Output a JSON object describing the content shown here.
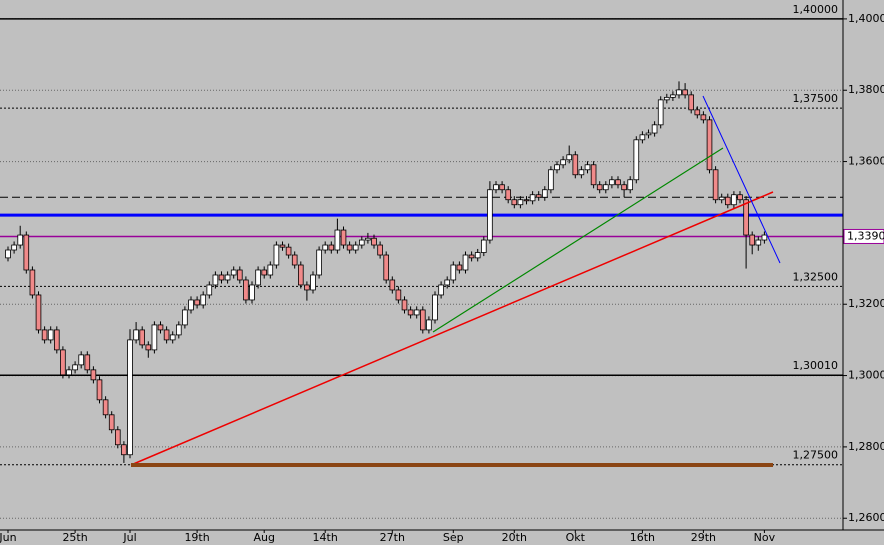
{
  "chart_data": {
    "type": "candlestick",
    "categories": [
      "Jun",
      null,
      null,
      null,
      null,
      null,
      null,
      null,
      null,
      null,
      null,
      "25th",
      null,
      null,
      null,
      null,
      null,
      null,
      null,
      null,
      "Jul",
      null,
      null,
      null,
      null,
      null,
      null,
      null,
      null,
      null,
      null,
      "19th",
      null,
      null,
      null,
      null,
      null,
      null,
      null,
      null,
      null,
      null,
      "Aug",
      null,
      null,
      null,
      null,
      null,
      null,
      null,
      null,
      null,
      "14th",
      null,
      null,
      null,
      null,
      null,
      null,
      null,
      null,
      null,
      null,
      "27th",
      null,
      null,
      null,
      null,
      null,
      null,
      null,
      null,
      null,
      "Sep",
      null,
      null,
      null,
      null,
      null,
      null,
      null,
      null,
      null,
      "20th",
      null,
      null,
      null,
      null,
      null,
      null,
      null,
      null,
      null,
      "Okt",
      null,
      null,
      null,
      null,
      null,
      null,
      null,
      null,
      null,
      null,
      "16th",
      null,
      null,
      null,
      null,
      null,
      null,
      null,
      null,
      null,
      "29th",
      null,
      null,
      null,
      null,
      null,
      null,
      null,
      null,
      null,
      "Nov"
    ],
    "open": [
      1.333,
      1.3352,
      1.3366,
      1.3394,
      1.3296,
      1.3226,
      1.3128,
      1.31,
      1.3128,
      1.3072,
      1.3002,
      1.3016,
      1.303,
      1.3058,
      1.3016,
      1.2988,
      1.2932,
      1.289,
      1.2848,
      1.2806,
      1.2778,
      1.31,
      1.3128,
      1.3086,
      1.3072,
      1.3142,
      1.3128,
      1.31,
      1.3114,
      1.3142,
      1.3184,
      1.3212,
      1.3198,
      1.3226,
      1.3254,
      1.3282,
      1.3268,
      1.3282,
      1.3296,
      1.3268,
      1.3212,
      1.3254,
      1.3296,
      1.3282,
      1.331,
      1.3366,
      1.336,
      1.3338,
      1.331,
      1.3254,
      1.324,
      1.3282,
      1.3352,
      1.3366,
      1.3352,
      1.3408,
      1.3366,
      1.3352,
      1.3366,
      1.338,
      1.3385,
      1.3366,
      1.3338,
      1.3268,
      1.324,
      1.3212,
      1.3184,
      1.317,
      1.3184,
      1.3128,
      1.3156,
      1.3226,
      1.3254,
      1.3268,
      1.331,
      1.3296,
      1.3338,
      1.333,
      1.3345,
      1.338,
      1.3521,
      1.3535,
      1.3521,
      1.3493,
      1.3479,
      1.3493,
      1.349,
      1.3507,
      1.35,
      1.3521,
      1.3577,
      1.3591,
      1.3605,
      1.3619,
      1.3563,
      1.3577,
      1.3591,
      1.3535,
      1.3521,
      1.3535,
      1.3549,
      1.3535,
      1.3521,
      1.3549,
      1.3661,
      1.3675,
      1.368,
      1.3703,
      1.3773,
      1.378,
      1.3787,
      1.3801,
      1.3787,
      1.3745,
      1.3731,
      1.3717,
      1.3577,
      1.3493,
      1.35,
      1.3479,
      1.3507,
      1.3493,
      1.3394,
      1.3366,
      1.338
    ],
    "high": [
      1.3362,
      1.3376,
      1.342,
      1.3404,
      1.3306,
      1.3236,
      1.3138,
      1.3138,
      1.3138,
      1.3082,
      1.3026,
      1.304,
      1.3068,
      1.3068,
      1.3026,
      1.2998,
      1.2942,
      1.29,
      1.2858,
      1.2816,
      1.313,
      1.315,
      1.3138,
      1.3096,
      1.3152,
      1.3152,
      1.3138,
      1.3124,
      1.3152,
      1.3194,
      1.3222,
      1.3222,
      1.3236,
      1.3264,
      1.3292,
      1.3292,
      1.3292,
      1.3306,
      1.3306,
      1.3278,
      1.3264,
      1.3306,
      1.3306,
      1.332,
      1.3376,
      1.3376,
      1.337,
      1.3348,
      1.332,
      1.3264,
      1.3292,
      1.3362,
      1.3376,
      1.3376,
      1.344,
      1.3418,
      1.3376,
      1.3376,
      1.339,
      1.34,
      1.3395,
      1.3376,
      1.3348,
      1.3278,
      1.325,
      1.3222,
      1.3194,
      1.3194,
      1.3194,
      1.3166,
      1.3236,
      1.3264,
      1.3278,
      1.332,
      1.332,
      1.3348,
      1.3348,
      1.3355,
      1.339,
      1.3545,
      1.3545,
      1.3545,
      1.3531,
      1.3503,
      1.3503,
      1.3503,
      1.3517,
      1.3517,
      1.3531,
      1.3587,
      1.3601,
      1.3615,
      1.3645,
      1.3629,
      1.3587,
      1.3601,
      1.3601,
      1.3545,
      1.3545,
      1.3559,
      1.3559,
      1.3545,
      1.3559,
      1.3671,
      1.3685,
      1.369,
      1.3713,
      1.3783,
      1.379,
      1.3797,
      1.3825,
      1.382,
      1.3797,
      1.3755,
      1.3741,
      1.3727,
      1.3587,
      1.351,
      1.351,
      1.3517,
      1.3517,
      1.3503,
      1.3404,
      1.339,
      1.3404
    ],
    "low": [
      1.332,
      1.3342,
      1.3356,
      1.3286,
      1.3216,
      1.3118,
      1.309,
      1.309,
      1.3062,
      1.2992,
      1.2992,
      1.3006,
      1.302,
      1.3006,
      1.2978,
      1.2922,
      1.288,
      1.2838,
      1.2796,
      1.2755,
      1.2768,
      1.309,
      1.3076,
      1.305,
      1.3062,
      1.3118,
      1.309,
      1.309,
      1.3104,
      1.3132,
      1.3174,
      1.3188,
      1.3188,
      1.3216,
      1.3244,
      1.3258,
      1.3258,
      1.3272,
      1.3258,
      1.3202,
      1.3202,
      1.3244,
      1.3272,
      1.3272,
      1.33,
      1.335,
      1.3328,
      1.33,
      1.3244,
      1.321,
      1.323,
      1.3272,
      1.3342,
      1.3342,
      1.3342,
      1.3356,
      1.3342,
      1.3342,
      1.3356,
      1.337,
      1.3356,
      1.3328,
      1.3258,
      1.323,
      1.3202,
      1.3174,
      1.316,
      1.316,
      1.3118,
      1.3118,
      1.3146,
      1.3216,
      1.3244,
      1.3258,
      1.3286,
      1.3286,
      1.332,
      1.332,
      1.3335,
      1.337,
      1.3511,
      1.3511,
      1.3483,
      1.3469,
      1.3469,
      1.348,
      1.348,
      1.349,
      1.349,
      1.3511,
      1.3567,
      1.3581,
      1.3595,
      1.3553,
      1.3553,
      1.3567,
      1.3525,
      1.3511,
      1.3511,
      1.3525,
      1.3525,
      1.35,
      1.3511,
      1.3539,
      1.3651,
      1.3665,
      1.367,
      1.3693,
      1.3763,
      1.377,
      1.3777,
      1.3777,
      1.3735,
      1.3721,
      1.3707,
      1.3567,
      1.3483,
      1.3483,
      1.3469,
      1.3469,
      1.3483,
      1.33,
      1.334,
      1.335,
      1.337
    ],
    "close": [
      1.3352,
      1.3366,
      1.3394,
      1.3296,
      1.3226,
      1.3128,
      1.31,
      1.3128,
      1.3072,
      1.3002,
      1.3016,
      1.303,
      1.3058,
      1.3016,
      1.2988,
      1.2932,
      1.289,
      1.2848,
      1.2806,
      1.2778,
      1.31,
      1.3128,
      1.3086,
      1.3072,
      1.3142,
      1.3128,
      1.31,
      1.3114,
      1.3142,
      1.3184,
      1.3212,
      1.3198,
      1.3226,
      1.3254,
      1.3282,
      1.3268,
      1.3282,
      1.3296,
      1.3268,
      1.3212,
      1.3254,
      1.3296,
      1.3282,
      1.331,
      1.3366,
      1.336,
      1.3338,
      1.331,
      1.3254,
      1.324,
      1.3282,
      1.3352,
      1.3366,
      1.3352,
      1.3408,
      1.3366,
      1.3352,
      1.3366,
      1.338,
      1.3385,
      1.3366,
      1.3338,
      1.3268,
      1.324,
      1.3212,
      1.3184,
      1.317,
      1.3184,
      1.3128,
      1.3156,
      1.3226,
      1.3254,
      1.3268,
      1.331,
      1.3296,
      1.3338,
      1.333,
      1.3345,
      1.338,
      1.3521,
      1.3535,
      1.3521,
      1.3493,
      1.3479,
      1.3493,
      1.349,
      1.3507,
      1.35,
      1.3521,
      1.3577,
      1.3591,
      1.3605,
      1.3619,
      1.3563,
      1.3577,
      1.3591,
      1.3535,
      1.3521,
      1.3535,
      1.3549,
      1.3535,
      1.3521,
      1.3549,
      1.3661,
      1.3675,
      1.368,
      1.3703,
      1.3773,
      1.378,
      1.3787,
      1.3801,
      1.3787,
      1.3745,
      1.3731,
      1.3717,
      1.3577,
      1.3493,
      1.35,
      1.3479,
      1.3507,
      1.3493,
      1.3394,
      1.3366,
      1.338,
      1.3394
    ],
    "up_color": "#ffffff",
    "down_color": "#f08a8a",
    "ylim": [
      1.2567,
      1.4053
    ],
    "yticks": [
      {
        "value": 1.4,
        "label": "1,4000"
      },
      {
        "value": 1.38,
        "label": "1,3800"
      },
      {
        "value": 1.36,
        "label": "1,3600"
      },
      {
        "value": 1.32,
        "label": "1,3200"
      },
      {
        "value": 1.3,
        "label": "1,3000"
      },
      {
        "value": 1.28,
        "label": "1,2800"
      },
      {
        "value": 1.26,
        "label": "1,2600"
      }
    ],
    "grid": true,
    "levels": [
      {
        "value": 1.4,
        "label": "1,40000",
        "color": "#000000",
        "style": "solid"
      },
      {
        "value": 1.375,
        "label": "1,37500",
        "color": "#000000",
        "style": "dotted"
      },
      {
        "value": 1.35,
        "color": "#000000",
        "style": "dashed"
      },
      {
        "value": 1.345,
        "color": "#0000ff",
        "style": "thick"
      },
      {
        "value": 1.339,
        "label": "1,3390",
        "color": "#990099",
        "style": "solid",
        "label_on_axis": true
      },
      {
        "value": 1.325,
        "label": "1,32500",
        "color": "#000000",
        "style": "dotted"
      },
      {
        "value": 1.3001,
        "label": "1,30010",
        "color": "#000000",
        "style": "solid"
      },
      {
        "value": 1.275,
        "label": "1,27500",
        "color": "#000000",
        "style": "dotted"
      }
    ]
  }
}
